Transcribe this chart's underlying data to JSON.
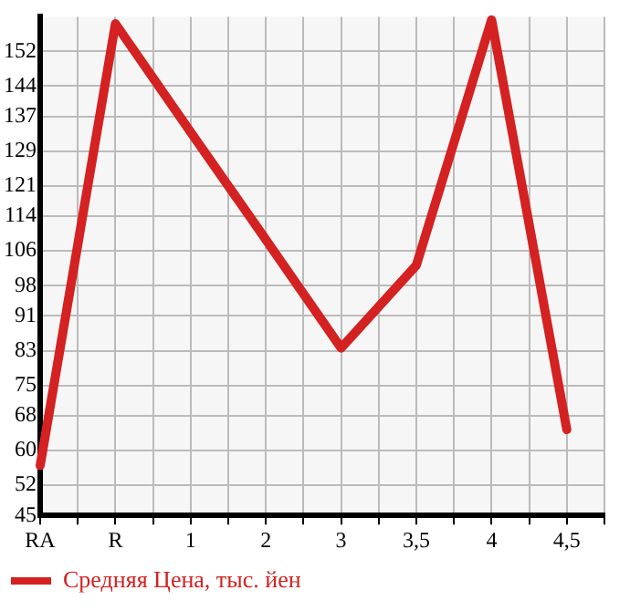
{
  "chart_data": {
    "type": "line",
    "categories": [
      "RA",
      "R",
      "1",
      "2",
      "3",
      "3,5",
      "4",
      "4,5"
    ],
    "series": [
      {
        "name": "Средняя Цена, тыс. йен",
        "color": "#d42121",
        "values": [
          56.5,
          158.4,
          133.4,
          108.6,
          83.6,
          102.7,
          159.3,
          64.8
        ]
      }
    ],
    "ylim": [
      45,
      160
    ],
    "yticks": [
      45,
      52,
      60,
      68,
      75,
      83,
      91,
      98,
      106,
      114,
      121,
      129,
      137,
      144,
      152
    ],
    "grid": true,
    "legend": "bottom left",
    "marker": "none",
    "line_style": "solid"
  }
}
